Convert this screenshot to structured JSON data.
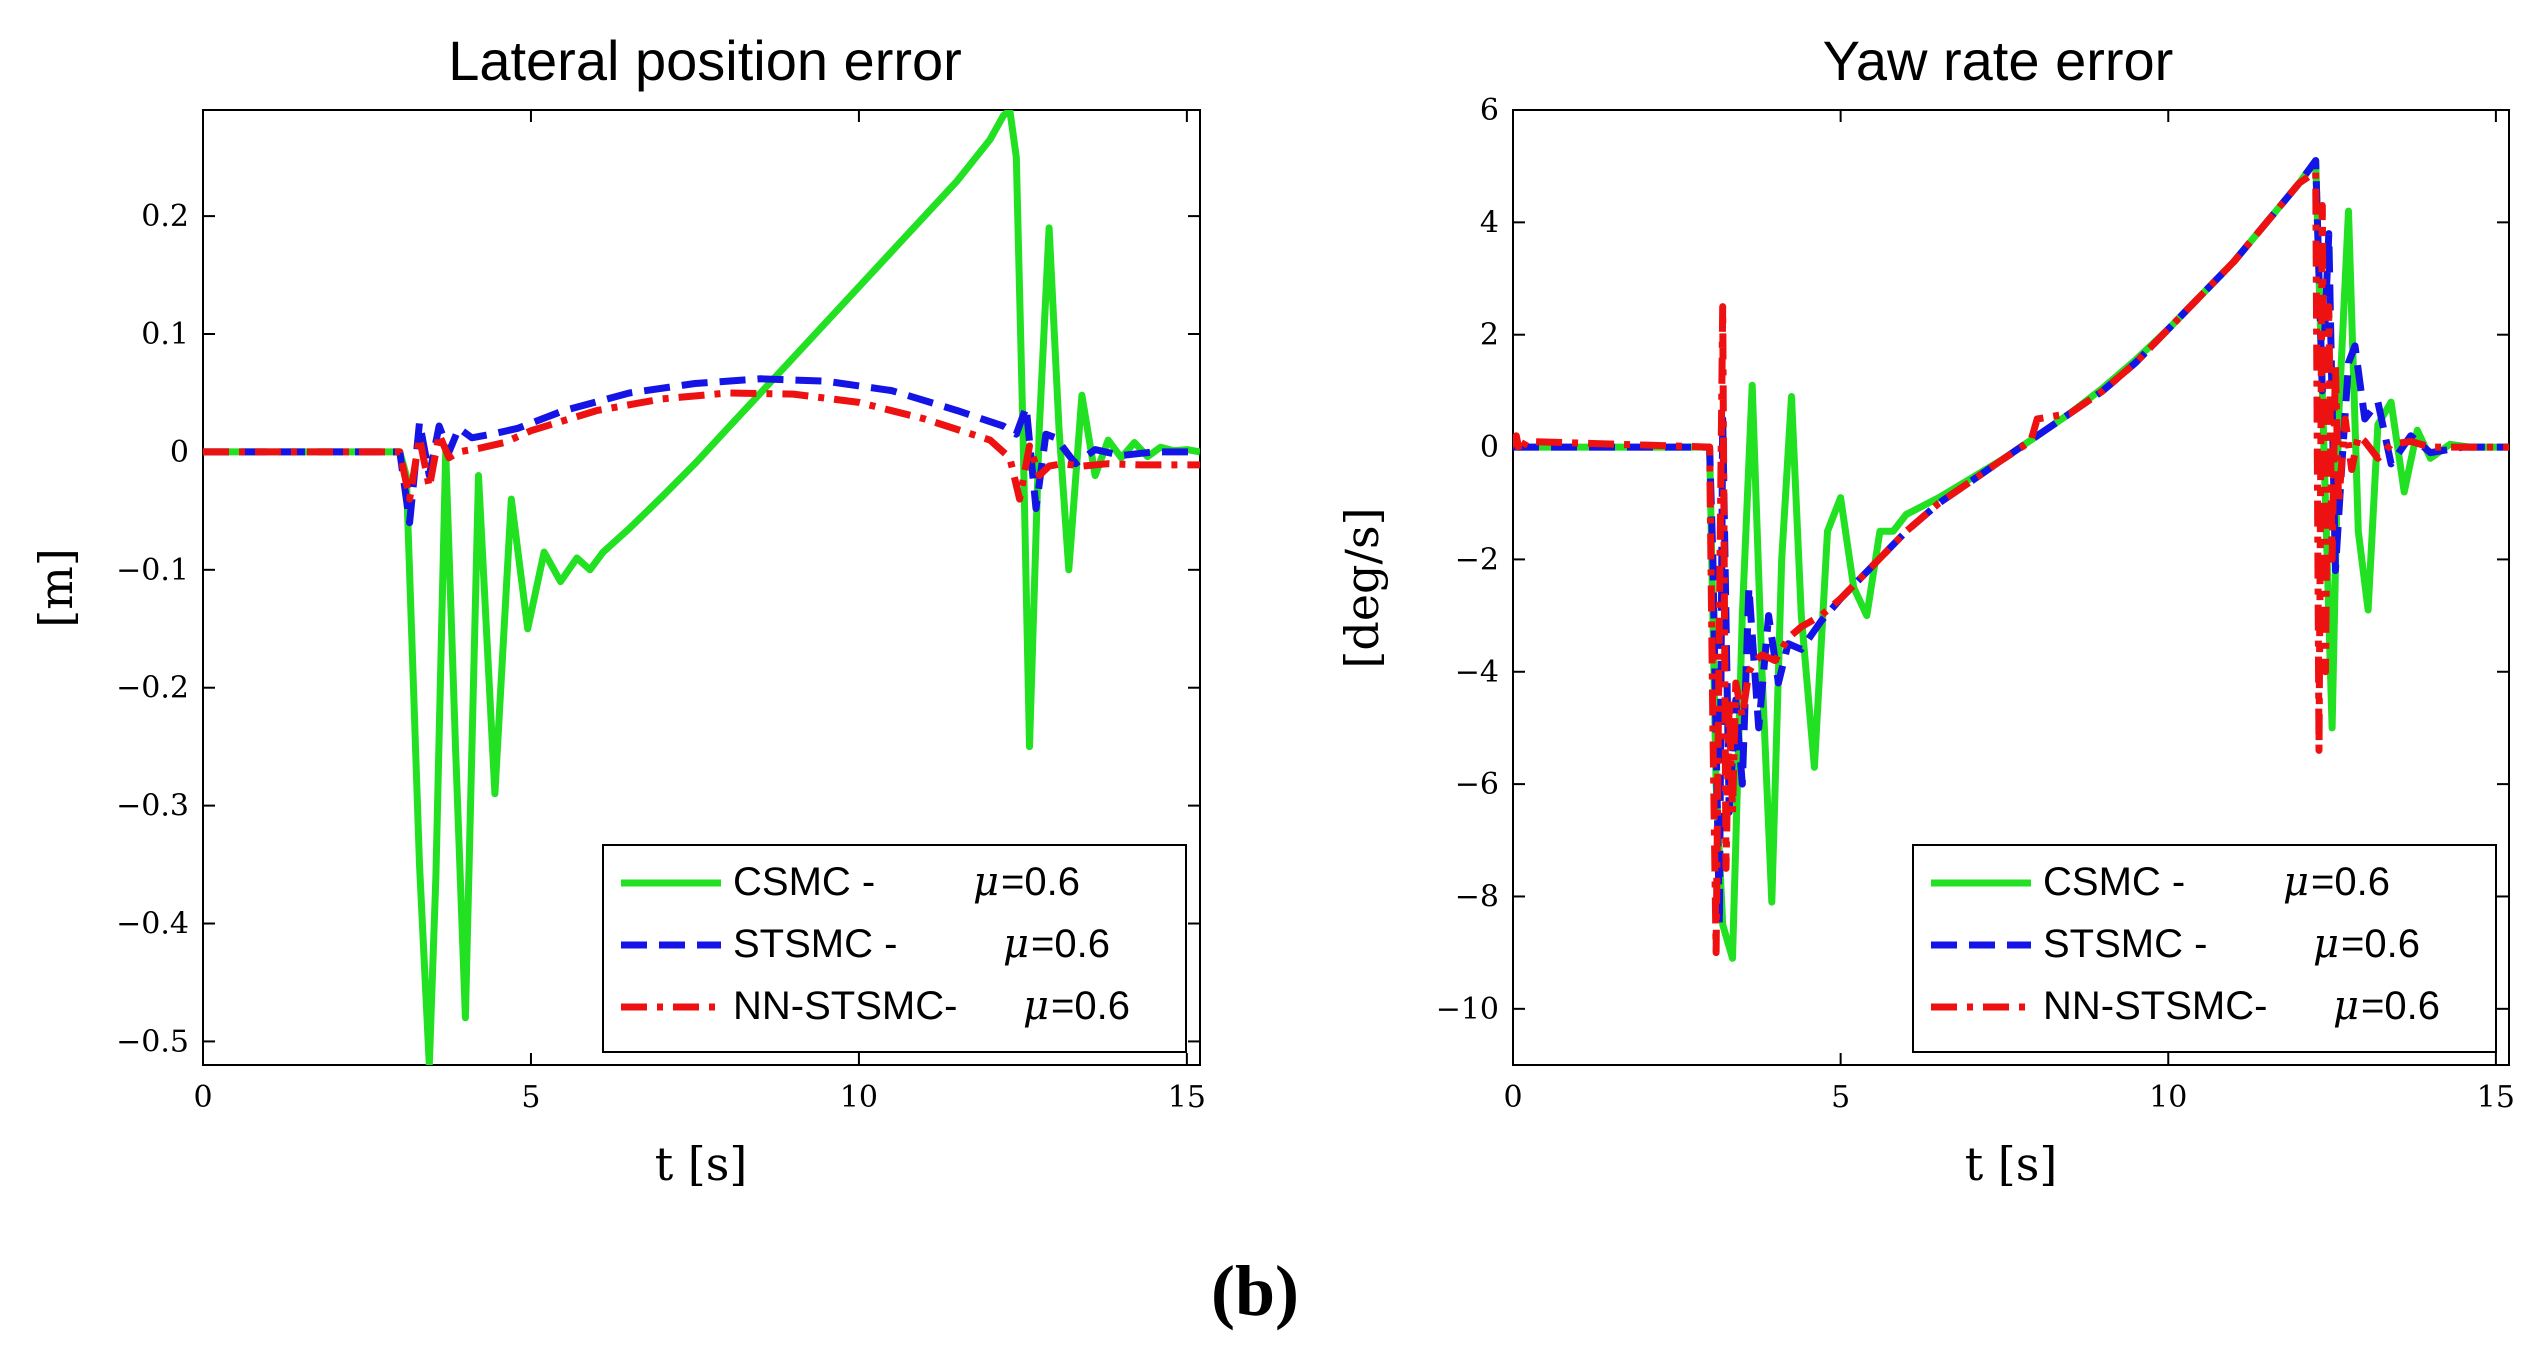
{
  "caption": "(b)",
  "colors": {
    "CSMC": "#22e022",
    "STSMC": "#1414e6",
    "NN-STSMC": "#ee1111"
  },
  "chart_data": [
    {
      "type": "line",
      "title": "Lateral position error",
      "xlabel": "t [s]",
      "ylabel": "[m]",
      "xlim": [
        0,
        15.2
      ],
      "ylim": [
        -0.52,
        0.29
      ],
      "xticks": [
        0,
        5,
        10,
        15
      ],
      "xtick_labels": [
        "0",
        "5",
        "10",
        "15"
      ],
      "yticks": [
        0.2,
        0.1,
        0,
        -0.1,
        -0.2,
        -0.3,
        -0.4,
        -0.5
      ],
      "ytick_labels": [
        "0.2",
        "0.1",
        "0",
        "−0.1",
        "−0.2",
        "−0.3",
        "−0.4",
        "−0.5"
      ],
      "legend": {
        "position": "bottom-right",
        "entries": [
          {
            "name": "CSMC - ",
            "mu": "μ",
            "value": "=0.6",
            "style": "solid"
          },
          {
            "name": "STSMC - ",
            "mu": "μ",
            "value": "=0.6",
            "style": "dashed"
          },
          {
            "name": "NN-STSMC- ",
            "mu": "μ",
            "value": "=0.6",
            "style": "dashdot"
          }
        ]
      },
      "series": [
        {
          "name": "CSMC",
          "style": "solid",
          "x": [
            0,
            3.0,
            3.1,
            3.3,
            3.45,
            3.55,
            3.7,
            3.85,
            4.0,
            4.2,
            4.45,
            4.7,
            4.95,
            5.2,
            5.45,
            5.7,
            5.9,
            6.1,
            6.3,
            6.5,
            7.0,
            7.5,
            8.0,
            8.5,
            9.0,
            9.5,
            10.0,
            10.5,
            11.0,
            11.5,
            12.0,
            12.2,
            12.3,
            12.4,
            12.5,
            12.6,
            12.75,
            12.9,
            13.05,
            13.2,
            13.4,
            13.6,
            13.8,
            14.0,
            14.2,
            14.4,
            14.6,
            14.8,
            15.0,
            15.2
          ],
          "y": [
            0,
            0,
            -0.02,
            -0.35,
            -0.52,
            -0.36,
            0.0,
            -0.25,
            -0.48,
            -0.02,
            -0.29,
            -0.04,
            -0.15,
            -0.085,
            -0.11,
            -0.09,
            -0.1,
            -0.085,
            -0.075,
            -0.065,
            -0.038,
            -0.01,
            0.02,
            0.05,
            0.08,
            0.11,
            0.14,
            0.17,
            0.2,
            0.23,
            0.265,
            0.285,
            0.29,
            0.25,
            0.02,
            -0.25,
            0.02,
            0.19,
            0.02,
            -0.1,
            0.048,
            -0.02,
            0.01,
            -0.005,
            0.008,
            -0.004,
            0.004,
            0.001,
            0.002,
            0
          ]
        },
        {
          "name": "STSMC",
          "style": "dashed",
          "x": [
            0,
            3.0,
            3.15,
            3.3,
            3.45,
            3.6,
            3.75,
            3.9,
            4.1,
            4.4,
            4.8,
            5.5,
            6.5,
            7.5,
            8.5,
            9.5,
            10.5,
            11.5,
            12.2,
            12.4,
            12.55,
            12.7,
            12.85,
            13.0,
            13.3,
            13.6,
            14.0,
            14.5,
            15.2
          ],
          "y": [
            0,
            0,
            -0.06,
            0.025,
            -0.02,
            0.022,
            0.0,
            0.02,
            0.012,
            0.015,
            0.02,
            0.035,
            0.05,
            0.058,
            0.062,
            0.06,
            0.052,
            0.035,
            0.022,
            0.015,
            0.038,
            -0.048,
            0.015,
            0.012,
            -0.01,
            0.002,
            -0.003,
            0.0,
            0.0
          ]
        },
        {
          "name": "NN-STSMC",
          "style": "dashdot",
          "x": [
            0,
            3.0,
            3.15,
            3.3,
            3.45,
            3.6,
            3.75,
            3.9,
            4.2,
            4.6,
            5.0,
            6.0,
            7.0,
            8.0,
            9.0,
            10.0,
            11.0,
            12.0,
            12.3,
            12.45,
            12.6,
            12.75,
            12.9,
            13.1,
            13.4,
            13.8,
            14.3,
            15.2
          ],
          "y": [
            0,
            0,
            -0.04,
            0.012,
            -0.03,
            0.015,
            -0.005,
            0.0,
            0.003,
            0.008,
            0.018,
            0.035,
            0.045,
            0.05,
            0.049,
            0.042,
            0.028,
            0.01,
            -0.005,
            -0.04,
            0.005,
            -0.02,
            -0.012,
            -0.01,
            -0.012,
            -0.01,
            -0.011,
            -0.011
          ]
        }
      ]
    },
    {
      "type": "line",
      "title": "Yaw rate error",
      "xlabel": "t [s]",
      "ylabel": "[deg/s]",
      "xlim": [
        0,
        15.2
      ],
      "ylim": [
        -11,
        6
      ],
      "xticks": [
        0,
        5,
        10,
        15
      ],
      "xtick_labels": [
        "0",
        "5",
        "10",
        "15"
      ],
      "yticks": [
        6,
        4,
        2,
        0,
        -2,
        -4,
        -6,
        -8,
        -10
      ],
      "ytick_labels": [
        "6",
        "4",
        "2",
        "0",
        "−2",
        "−4",
        "−6",
        "−8",
        "−10"
      ],
      "legend": {
        "position": "bottom-right",
        "entries": [
          {
            "name": "CSMC - ",
            "mu": "μ",
            "value": "=0.6",
            "style": "solid"
          },
          {
            "name": "STSMC - ",
            "mu": "μ",
            "value": "=0.6",
            "style": "dashed"
          },
          {
            "name": "NN-STSMC- ",
            "mu": "μ",
            "value": "=0.6",
            "style": "dashdot"
          }
        ]
      },
      "series": [
        {
          "name": "CSMC",
          "style": "solid",
          "x": [
            0,
            3.0,
            3.1,
            3.2,
            3.35,
            3.5,
            3.65,
            3.8,
            3.95,
            4.1,
            4.25,
            4.4,
            4.6,
            4.8,
            5.0,
            5.2,
            5.4,
            5.6,
            5.8,
            6.0,
            6.5,
            7.0,
            7.5,
            8.0,
            8.5,
            9.0,
            9.5,
            10.0,
            10.5,
            11.0,
            11.5,
            12.0,
            12.25,
            12.4,
            12.5,
            12.6,
            12.75,
            12.9,
            13.05,
            13.2,
            13.4,
            13.6,
            13.8,
            14.0,
            14.3,
            14.6,
            15.2
          ],
          "y": [
            0,
            0,
            -6,
            -8.5,
            -9.1,
            -3,
            1.1,
            -4,
            -8.1,
            -2,
            0.9,
            -3,
            -5.7,
            -1.5,
            -0.9,
            -2.5,
            -3,
            -1.5,
            -1.5,
            -1.2,
            -0.9,
            -0.55,
            -0.2,
            0.2,
            0.6,
            1.05,
            1.55,
            2.1,
            2.7,
            3.3,
            4.0,
            4.7,
            5.1,
            -1,
            -5.0,
            0.5,
            4.2,
            -1.5,
            -2.9,
            0.4,
            0.8,
            -0.8,
            0.3,
            -0.2,
            0.05,
            0.0,
            0
          ]
        },
        {
          "name": "STSMC",
          "style": "dashed",
          "x": [
            0,
            3.0,
            3.05,
            3.15,
            3.2,
            3.3,
            3.4,
            3.5,
            3.6,
            3.75,
            3.9,
            4.05,
            4.2,
            4.4,
            4.7,
            5.0,
            5.5,
            6.0,
            6.5,
            7.0,
            7.5,
            8.0,
            8.5,
            9.0,
            9.5,
            10.0,
            10.5,
            11.0,
            11.5,
            12.0,
            12.25,
            12.35,
            12.45,
            12.55,
            12.65,
            12.75,
            12.85,
            13.0,
            13.2,
            13.4,
            13.7,
            14.0,
            14.5,
            15.2
          ],
          "y": [
            0,
            0,
            -2,
            -8.5,
            0.5,
            -6.5,
            -4.5,
            -6,
            -2.5,
            -5,
            -3,
            -4.2,
            -3.5,
            -3.6,
            -3.1,
            -2.7,
            -2.1,
            -1.5,
            -1.0,
            -0.6,
            -0.2,
            0.2,
            0.6,
            1.0,
            1.5,
            2.1,
            2.7,
            3.3,
            4.0,
            4.7,
            5.1,
            1,
            3.8,
            -2.2,
            -0.3,
            1.5,
            1.8,
            0.5,
            0.8,
            -0.3,
            0.2,
            -0.1,
            0.0,
            0
          ]
        },
        {
          "name": "NN-STSMC",
          "style": "dashdot",
          "x": [
            0,
            0.05,
            0.1,
            0.2,
            3.0,
            3.05,
            3.1,
            3.15,
            3.2,
            3.25,
            3.3,
            3.35,
            3.4,
            3.5,
            3.6,
            3.7,
            3.8,
            4.0,
            4.2,
            4.4,
            4.7,
            5.0,
            5.5,
            6.0,
            6.5,
            7.0,
            7.5,
            7.9,
            8.0,
            8.5,
            9.0,
            9.5,
            10.0,
            10.5,
            11.0,
            11.5,
            12.0,
            12.25,
            12.3,
            12.35,
            12.4,
            12.45,
            12.5,
            12.55,
            12.6,
            12.7,
            12.8,
            12.9,
            13.0,
            13.2,
            13.4,
            13.7,
            14.0,
            14.5,
            15.2
          ],
          "y": [
            0,
            0.2,
            -0.1,
            0.1,
            0,
            -5,
            -9,
            -3,
            2.5,
            -7.5,
            -4.5,
            -6.5,
            -4.2,
            -4.8,
            -4.0,
            -3.8,
            -3.7,
            -3.8,
            -3.4,
            -3.2,
            -3.0,
            -2.7,
            -2.1,
            -1.5,
            -1.0,
            -0.6,
            -0.2,
            0.1,
            0.5,
            0.6,
            1.0,
            1.5,
            2.1,
            2.7,
            3.3,
            4.0,
            4.7,
            4.9,
            -5.4,
            4.3,
            -4.0,
            2.5,
            -2.0,
            1.5,
            -1.0,
            0.5,
            -0.4,
            0.2,
            0.1,
            -0.2,
            0.05,
            0.1,
            0.0,
            0.0,
            0
          ]
        }
      ]
    }
  ]
}
